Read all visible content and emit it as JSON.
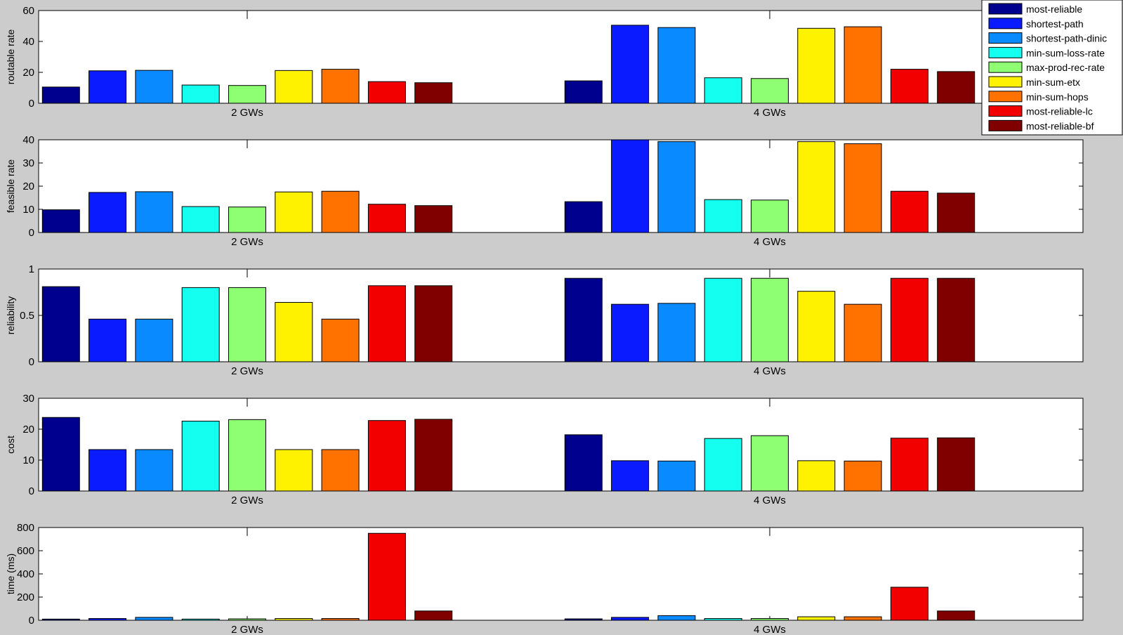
{
  "chart_data": [
    {
      "type": "bar",
      "ylabel": "routable rate",
      "ylim": [
        0,
        60
      ],
      "yticks": [
        0,
        20,
        40,
        60
      ],
      "categories": [
        "2 GWs",
        "4 GWs"
      ],
      "series": [
        {
          "name": "most-reliable",
          "values": [
            10.5,
            14.5
          ]
        },
        {
          "name": "shortest-path",
          "values": [
            21,
            50.5
          ]
        },
        {
          "name": "shortest-path-dinic",
          "values": [
            21.3,
            49
          ]
        },
        {
          "name": "min-sum-loss-rate",
          "values": [
            11.8,
            16.5
          ]
        },
        {
          "name": "max-prod-rec-rate",
          "values": [
            11.5,
            16
          ]
        },
        {
          "name": "min-sum-etx",
          "values": [
            21.2,
            48.5
          ]
        },
        {
          "name": "min-sum-hops",
          "values": [
            22,
            49.5
          ]
        },
        {
          "name": "most-reliable-lc",
          "values": [
            14,
            22
          ]
        },
        {
          "name": "most-reliable-bf",
          "values": [
            13.3,
            20.5
          ]
        }
      ]
    },
    {
      "type": "bar",
      "ylabel": "feasible rate",
      "ylim": [
        0,
        40
      ],
      "yticks": [
        0,
        10,
        20,
        30,
        40
      ],
      "categories": [
        "2 GWs",
        "4 GWs"
      ],
      "series": [
        {
          "name": "most-reliable",
          "values": [
            9.8,
            13.3
          ]
        },
        {
          "name": "shortest-path",
          "values": [
            17.3,
            40
          ]
        },
        {
          "name": "shortest-path-dinic",
          "values": [
            17.6,
            39.2
          ]
        },
        {
          "name": "min-sum-loss-rate",
          "values": [
            11.2,
            14.2
          ]
        },
        {
          "name": "max-prod-rec-rate",
          "values": [
            11,
            14
          ]
        },
        {
          "name": "min-sum-etx",
          "values": [
            17.5,
            39.2
          ]
        },
        {
          "name": "min-sum-hops",
          "values": [
            17.8,
            38.3
          ]
        },
        {
          "name": "most-reliable-lc",
          "values": [
            12.2,
            17.8
          ]
        },
        {
          "name": "most-reliable-bf",
          "values": [
            11.6,
            17
          ]
        }
      ]
    },
    {
      "type": "bar",
      "ylabel": "reliability",
      "ylim": [
        0,
        1
      ],
      "yticks": [
        0,
        0.5,
        1
      ],
      "categories": [
        "2 GWs",
        "4 GWs"
      ],
      "series": [
        {
          "name": "most-reliable",
          "values": [
            0.81,
            0.9
          ]
        },
        {
          "name": "shortest-path",
          "values": [
            0.46,
            0.62
          ]
        },
        {
          "name": "shortest-path-dinic",
          "values": [
            0.46,
            0.63
          ]
        },
        {
          "name": "min-sum-loss-rate",
          "values": [
            0.8,
            0.9
          ]
        },
        {
          "name": "max-prod-rec-rate",
          "values": [
            0.8,
            0.9
          ]
        },
        {
          "name": "min-sum-etx",
          "values": [
            0.64,
            0.76
          ]
        },
        {
          "name": "min-sum-hops",
          "values": [
            0.46,
            0.62
          ]
        },
        {
          "name": "most-reliable-lc",
          "values": [
            0.82,
            0.9
          ]
        },
        {
          "name": "most-reliable-bf",
          "values": [
            0.82,
            0.9
          ]
        }
      ]
    },
    {
      "type": "bar",
      "ylabel": "cost",
      "ylim": [
        0,
        30
      ],
      "yticks": [
        0,
        10,
        20,
        30
      ],
      "categories": [
        "2 GWs",
        "4 GWs"
      ],
      "series": [
        {
          "name": "most-reliable",
          "values": [
            23.8,
            18.2
          ]
        },
        {
          "name": "shortest-path",
          "values": [
            13.4,
            9.8
          ]
        },
        {
          "name": "shortest-path-dinic",
          "values": [
            13.4,
            9.7
          ]
        },
        {
          "name": "min-sum-loss-rate",
          "values": [
            22.6,
            17
          ]
        },
        {
          "name": "max-prod-rec-rate",
          "values": [
            23.1,
            17.9
          ]
        },
        {
          "name": "min-sum-etx",
          "values": [
            13.4,
            9.8
          ]
        },
        {
          "name": "min-sum-hops",
          "values": [
            13.4,
            9.7
          ]
        },
        {
          "name": "most-reliable-lc",
          "values": [
            22.8,
            17.1
          ]
        },
        {
          "name": "most-reliable-bf",
          "values": [
            23.2,
            17.2
          ]
        }
      ]
    },
    {
      "type": "bar",
      "ylabel": "time (ms)",
      "ylim": [
        0,
        800
      ],
      "yticks": [
        0,
        200,
        400,
        600,
        800
      ],
      "categories": [
        "2 GWs",
        "4 GWs"
      ],
      "series": [
        {
          "name": "most-reliable",
          "values": [
            10,
            12
          ]
        },
        {
          "name": "shortest-path",
          "values": [
            15,
            25
          ]
        },
        {
          "name": "shortest-path-dinic",
          "values": [
            25,
            40
          ]
        },
        {
          "name": "min-sum-loss-rate",
          "values": [
            10,
            15
          ]
        },
        {
          "name": "max-prod-rec-rate",
          "values": [
            12,
            15
          ]
        },
        {
          "name": "min-sum-etx",
          "values": [
            15,
            30
          ]
        },
        {
          "name": "min-sum-hops",
          "values": [
            15,
            30
          ]
        },
        {
          "name": "most-reliable-lc",
          "values": [
            750,
            285
          ]
        },
        {
          "name": "most-reliable-bf",
          "values": [
            80,
            80
          ]
        }
      ]
    }
  ],
  "colors": [
    "#00008f",
    "#0a1cff",
    "#0a8aff",
    "#14fff0",
    "#8eff72",
    "#fff200",
    "#ff7200",
    "#f20000",
    "#800000"
  ],
  "legend": {
    "entries": [
      "most-reliable",
      "shortest-path",
      "shortest-path-dinic",
      "min-sum-loss-rate",
      "max-prod-rec-rate",
      "min-sum-etx",
      "min-sum-hops",
      "most-reliable-lc",
      "most-reliable-bf"
    ],
    "placement": "top-right"
  }
}
